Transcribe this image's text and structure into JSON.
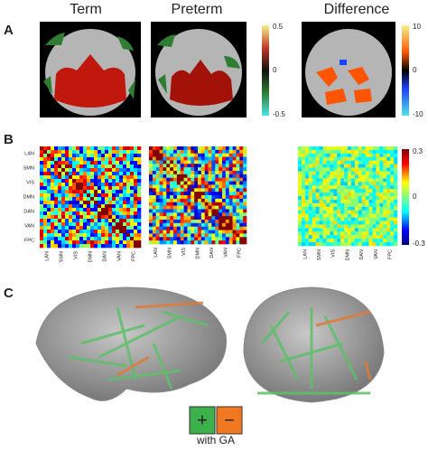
{
  "panels": {
    "a": "A",
    "b": "B",
    "c": "C"
  },
  "columns": [
    "Term",
    "Preterm",
    "Difference"
  ],
  "colorbars": {
    "connectivity": [
      "0.5",
      "0",
      "-0.5"
    ],
    "difference": [
      "10",
      "0",
      "-10"
    ],
    "matrix": [
      "0.3",
      "0",
      "-0.3"
    ]
  },
  "networks": [
    "LAN",
    "SMN",
    "VIS",
    "DMN",
    "DAN",
    "VAN",
    "FPC"
  ],
  "legend": {
    "positive": "+",
    "negative": "−",
    "caption": "with GA"
  }
}
